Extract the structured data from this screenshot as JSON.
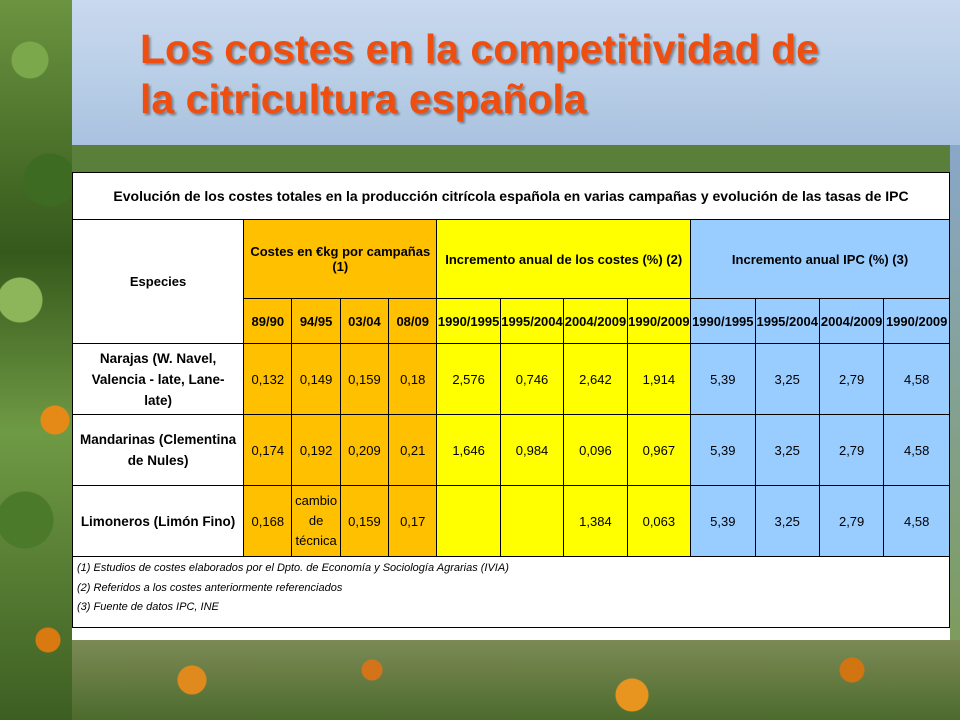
{
  "slide": {
    "title_line1": "Los costes en la competitividad de",
    "title_line2": "la citricultura española"
  },
  "table": {
    "caption": "Evolución de los costes totales en la producción citrícola española en varias campañas y evolución de las tasas de IPC",
    "header": {
      "species": "Especies",
      "costs": "Costes en €kg por campañas (1)",
      "cost_increase": "Incremento anual de los costes (%) (2)",
      "ipc_increase": "Incremento anual IPC (%) (3)"
    },
    "campaigns": [
      "89/90",
      "94/95",
      "03/04",
      "08/09"
    ],
    "cost_periods": [
      "1990/1995",
      "1995/2004",
      "2004/2009",
      "1990/2009"
    ],
    "ipc_periods": [
      "1990/1995",
      "1995/2004",
      "2004/2009",
      "1990/2009"
    ],
    "rows": [
      {
        "species": "Narajas (W. Navel, Valencia - late, Lane- late)",
        "costs": [
          "0,132",
          "0,149",
          "0,159",
          "0,18"
        ],
        "cost_increase": [
          "2,576",
          "0,746",
          "2,642",
          "1,914"
        ],
        "ipc": [
          "5,39",
          "3,25",
          "2,79",
          "4,58"
        ]
      },
      {
        "species": "Mandarinas (Clementina de Nules)",
        "costs": [
          "0,174",
          "0,192",
          "0,209",
          "0,21"
        ],
        "cost_increase": [
          "1,646",
          "0,984",
          "0,096",
          "0,967"
        ],
        "ipc": [
          "5,39",
          "3,25",
          "2,79",
          "4,58"
        ]
      },
      {
        "species": "Limoneros (Limón Fino)",
        "costs": [
          "0,168",
          "cambio de técnica",
          "0,159",
          "0,17"
        ],
        "cost_increase": [
          "",
          "",
          "1,384",
          "0,063"
        ],
        "ipc": [
          "5,39",
          "3,25",
          "2,79",
          "4,58"
        ]
      }
    ],
    "notes": [
      "(1) Estudios de costes elaborados por el Dpto. de Economía y Sociología Agrarias (IVIA)",
      "(2) Referidos a los costes anteriormente referenciados",
      "(3) Fuente de datos IPC, INE"
    ]
  },
  "colors": {
    "title": "#ee4e10",
    "costs_bg": "#ffc000",
    "increase_bg": "#ffff00",
    "ipc_bg": "#99ccff"
  }
}
